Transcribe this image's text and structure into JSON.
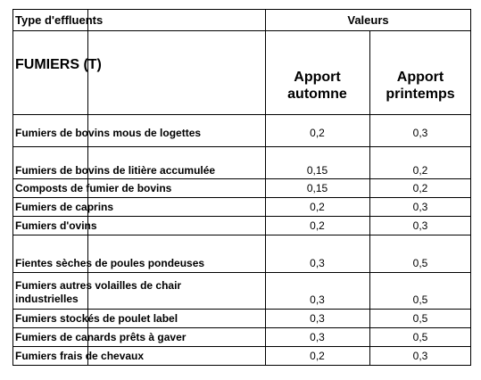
{
  "table": {
    "header": {
      "col_type": "Type d'effluents",
      "col_values": "Valeurs",
      "section": "FUMIERS (T)",
      "apport_autumn_line1": "Apport",
      "apport_autumn_line2": "automne",
      "apport_spring_line1": "Apport",
      "apport_spring_line2": "printemps"
    },
    "rows": [
      {
        "label": "Fumiers de bovins mous de logettes",
        "autumn": "0,2",
        "spring": "0,3"
      },
      {
        "label": "Fumiers de bovins de litière accumulée",
        "autumn": "0,15",
        "spring": "0,2"
      },
      {
        "label": "Composts de fumier de bovins",
        "autumn": "0,15",
        "spring": "0,2"
      },
      {
        "label": "Fumiers de caprins",
        "autumn": "0,2",
        "spring": "0,3"
      },
      {
        "label": "Fumiers d'ovins",
        "autumn": "0,2",
        "spring": "0,3"
      },
      {
        "label": "Fientes sèches de poules pondeuses",
        "autumn": "0,3",
        "spring": "0,5"
      },
      {
        "label": "Fumiers autres volailles de chair",
        "label2": "industrielles",
        "autumn": "0,3",
        "spring": "0,5"
      },
      {
        "label": "Fumiers stockés de poulet label",
        "autumn": "0,3",
        "spring": "0,5"
      },
      {
        "label": "Fumiers de canards prêts à gaver",
        "autumn": "0,3",
        "spring": "0,5"
      },
      {
        "label": "Fumiers frais de chevaux",
        "autumn": "0,2",
        "spring": "0,3"
      }
    ]
  }
}
